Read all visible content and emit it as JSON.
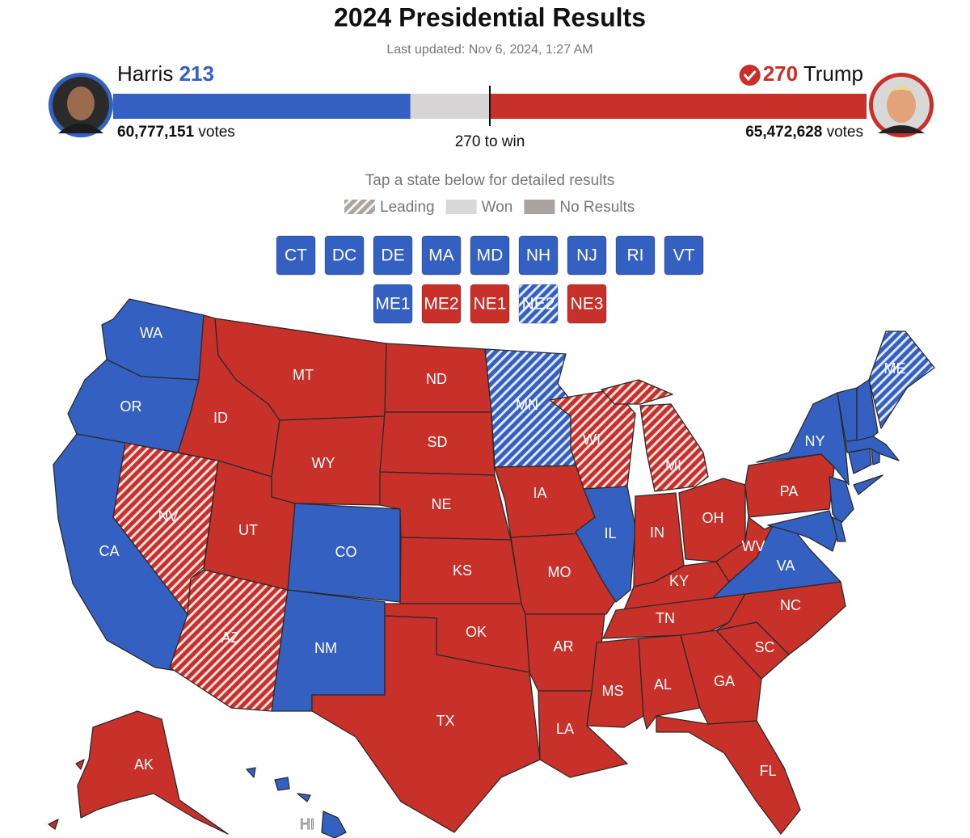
{
  "header": {
    "title": "2024 Presidential Results",
    "updated": "Last updated: Nov 6, 2024, 1:27 AM"
  },
  "candidates": [
    {
      "name": "Harris",
      "electoral_votes": 213,
      "votes": "60,777,151",
      "votes_unit": "votes",
      "party": "dem",
      "winner": false
    },
    {
      "name": "Trump",
      "electoral_votes": 270,
      "votes": "65,472,628",
      "votes_unit": "votes",
      "party": "rep",
      "winner": true
    }
  ],
  "win_threshold": {
    "value": 270,
    "label": "270 to win"
  },
  "colors": {
    "dem": "#3461c1",
    "rep": "#c8302a",
    "pending": "#d6d4d4"
  },
  "instructions": "Tap a state below for detailed results",
  "legend": [
    {
      "label": "Leading",
      "color": "#aaa5a2",
      "hatched": true
    },
    {
      "label": "Won",
      "color": "#d9d7d7"
    },
    {
      "label": "No Results",
      "color": "#a8a3a0"
    }
  ],
  "buttons": [
    {
      "label": "CT",
      "party": "dem",
      "status": "won"
    },
    {
      "label": "DC",
      "party": "dem",
      "status": "won"
    },
    {
      "label": "DE",
      "party": "dem",
      "status": "won"
    },
    {
      "label": "MA",
      "party": "dem",
      "status": "won"
    },
    {
      "label": "MD",
      "party": "dem",
      "status": "won"
    },
    {
      "label": "NH",
      "party": "dem",
      "status": "won"
    },
    {
      "label": "NJ",
      "party": "dem",
      "status": "won"
    },
    {
      "label": "RI",
      "party": "dem",
      "status": "won"
    },
    {
      "label": "VT",
      "party": "dem",
      "status": "won"
    }
  ],
  "districts": [
    {
      "label": "ME1",
      "party": "dem",
      "status": "won"
    },
    {
      "label": "ME2",
      "party": "rep",
      "status": "won"
    },
    {
      "label": "NE1",
      "party": "rep",
      "status": "won"
    },
    {
      "label": "NE2",
      "party": "dem",
      "status": "leading"
    },
    {
      "label": "NE3",
      "party": "rep",
      "status": "won"
    }
  ],
  "map": {
    "states": [
      {
        "label": "WA",
        "party": "dem",
        "status": "won"
      },
      {
        "label": "OR",
        "party": "dem",
        "status": "won"
      },
      {
        "label": "CA",
        "party": "dem",
        "status": "won"
      },
      {
        "label": "NV",
        "party": "rep",
        "status": "leading"
      },
      {
        "label": "ID",
        "party": "rep",
        "status": "won"
      },
      {
        "label": "MT",
        "party": "rep",
        "status": "won"
      },
      {
        "label": "WY",
        "party": "rep",
        "status": "won"
      },
      {
        "label": "UT",
        "party": "rep",
        "status": "won"
      },
      {
        "label": "AZ",
        "party": "rep",
        "status": "leading"
      },
      {
        "label": "CO",
        "party": "dem",
        "status": "won"
      },
      {
        "label": "NM",
        "party": "dem",
        "status": "won"
      },
      {
        "label": "ND",
        "party": "rep",
        "status": "won"
      },
      {
        "label": "SD",
        "party": "rep",
        "status": "won"
      },
      {
        "label": "NE",
        "party": "rep",
        "status": "won"
      },
      {
        "label": "KS",
        "party": "rep",
        "status": "won"
      },
      {
        "label": "OK",
        "party": "rep",
        "status": "won"
      },
      {
        "label": "TX",
        "party": "rep",
        "status": "won"
      },
      {
        "label": "MN",
        "party": "dem",
        "status": "leading"
      },
      {
        "label": "IA",
        "party": "rep",
        "status": "won"
      },
      {
        "label": "MO",
        "party": "rep",
        "status": "won"
      },
      {
        "label": "AR",
        "party": "rep",
        "status": "won"
      },
      {
        "label": "LA",
        "party": "rep",
        "status": "won"
      },
      {
        "label": "WI",
        "party": "rep",
        "status": "leading"
      },
      {
        "label": "IL",
        "party": "dem",
        "status": "won"
      },
      {
        "label": "MI",
        "party": "rep",
        "status": "leading"
      },
      {
        "label": "IN",
        "party": "rep",
        "status": "won"
      },
      {
        "label": "OH",
        "party": "rep",
        "status": "won"
      },
      {
        "label": "KY",
        "party": "rep",
        "status": "won"
      },
      {
        "label": "TN",
        "party": "rep",
        "status": "won"
      },
      {
        "label": "MS",
        "party": "rep",
        "status": "won"
      },
      {
        "label": "AL",
        "party": "rep",
        "status": "won"
      },
      {
        "label": "GA",
        "party": "rep",
        "status": "won"
      },
      {
        "label": "FL",
        "party": "rep",
        "status": "won"
      },
      {
        "label": "SC",
        "party": "rep",
        "status": "won"
      },
      {
        "label": "NC",
        "party": "rep",
        "status": "won"
      },
      {
        "label": "VA",
        "party": "dem",
        "status": "won"
      },
      {
        "label": "WV",
        "party": "rep",
        "status": "won"
      },
      {
        "label": "PA",
        "party": "rep",
        "status": "won"
      },
      {
        "label": "NY",
        "party": "dem",
        "status": "won"
      },
      {
        "label": "ME",
        "party": "dem",
        "status": "leading"
      },
      {
        "label": "AK",
        "party": "rep",
        "status": "won"
      },
      {
        "label": "HI",
        "party": "dem",
        "status": "won"
      }
    ]
  }
}
